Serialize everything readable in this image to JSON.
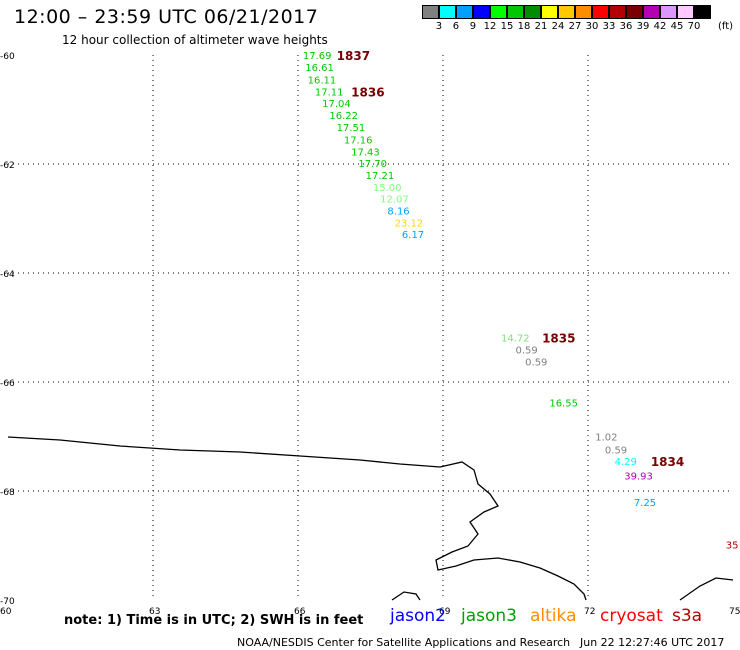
{
  "header": {
    "title": "12:00 – 23:59 UTC 06/21/2017",
    "subtitle": "12 hour collection of altimeter wave heights"
  },
  "legend": {
    "swatches": [
      {
        "color": "#808080",
        "label": "3"
      },
      {
        "color": "#00ffff",
        "label": "6"
      },
      {
        "color": "#00a0ff",
        "label": "9"
      },
      {
        "color": "#0000ff",
        "label": "12"
      },
      {
        "color": "#00ff00",
        "label": "15"
      },
      {
        "color": "#00c800",
        "label": "18"
      },
      {
        "color": "#008c00",
        "label": "21"
      },
      {
        "color": "#ffff00",
        "label": "24"
      },
      {
        "color": "#ffc800",
        "label": "27"
      },
      {
        "color": "#ff8c00",
        "label": "30"
      },
      {
        "color": "#ff0000",
        "label": "33"
      },
      {
        "color": "#b40000",
        "label": "36"
      },
      {
        "color": "#780000",
        "label": "39"
      },
      {
        "color": "#b400b4",
        "label": "42"
      },
      {
        "color": "#dc96ff",
        "label": "45"
      },
      {
        "color": "#ffc8ff",
        "label": "70"
      },
      {
        "color": "#000000",
        "label": ""
      }
    ],
    "unit": "(ft)"
  },
  "axes": {
    "lat_ticks": [
      "-60",
      "-62",
      "-64",
      "-66",
      "-68",
      "-70"
    ],
    "lon_ticks": [
      "60",
      "63",
      "66",
      "69",
      "72",
      "75"
    ]
  },
  "map": {
    "lat_range": [
      -70,
      -60
    ],
    "lon_range": [
      60,
      75
    ],
    "coastline": true,
    "grid": true
  },
  "observations": [
    {
      "lat": -60.0,
      "lon": 66.1,
      "value": "17.69",
      "color": "#00c800"
    },
    {
      "lat": -60.22,
      "lon": 66.15,
      "value": "16.61",
      "color": "#00c800"
    },
    {
      "lat": -60.45,
      "lon": 66.2,
      "value": "16.11",
      "color": "#00c800"
    },
    {
      "lat": -60.67,
      "lon": 66.35,
      "value": "17.11",
      "color": "#00c800"
    },
    {
      "lat": -60.88,
      "lon": 66.5,
      "value": "17.04",
      "color": "#00c800"
    },
    {
      "lat": -61.1,
      "lon": 66.65,
      "value": "16.22",
      "color": "#00c800"
    },
    {
      "lat": -61.32,
      "lon": 66.8,
      "value": "17.51",
      "color": "#00c800"
    },
    {
      "lat": -61.55,
      "lon": 66.95,
      "value": "17.16",
      "color": "#00c800"
    },
    {
      "lat": -61.77,
      "lon": 67.1,
      "value": "17.43",
      "color": "#00c800"
    },
    {
      "lat": -61.98,
      "lon": 67.25,
      "value": "17.70",
      "color": "#00c800"
    },
    {
      "lat": -62.2,
      "lon": 67.4,
      "value": "17.21",
      "color": "#00c800"
    },
    {
      "lat": -62.42,
      "lon": 67.55,
      "value": "15.00",
      "color": "#80ff80"
    },
    {
      "lat": -62.63,
      "lon": 67.7,
      "value": "12.07",
      "color": "#80ff80"
    },
    {
      "lat": -62.85,
      "lon": 67.85,
      "value": "8.16",
      "color": "#00a0ff"
    },
    {
      "lat": -63.07,
      "lon": 68.0,
      "value": "23.12",
      "color": "#ffd700"
    },
    {
      "lat": -63.28,
      "lon": 68.15,
      "value": "6.17",
      "color": "#00a0ff"
    },
    {
      "lat": -65.18,
      "lon": 70.2,
      "value": "14.72",
      "color": "#80e080"
    },
    {
      "lat": -65.4,
      "lon": 70.5,
      "value": "0.59",
      "color": "#808080"
    },
    {
      "lat": -65.62,
      "lon": 70.7,
      "value": "0.59",
      "color": "#808080"
    },
    {
      "lat": -66.38,
      "lon": 71.2,
      "value": "16.55",
      "color": "#00c800"
    },
    {
      "lat": -67.0,
      "lon": 72.15,
      "value": "1.02",
      "color": "#808080"
    },
    {
      "lat": -67.24,
      "lon": 72.35,
      "value": "0.59",
      "color": "#808080"
    },
    {
      "lat": -67.45,
      "lon": 72.55,
      "value": "4.29",
      "color": "#00ffff"
    },
    {
      "lat": -67.72,
      "lon": 72.75,
      "value": "39.93",
      "color": "#b400b4"
    },
    {
      "lat": -68.2,
      "lon": 72.95,
      "value": "7.25",
      "color": "#00a0ff"
    },
    {
      "lat": -68.98,
      "lon": 74.85,
      "value": "35",
      "color": "#b40000"
    }
  ],
  "cycle_labels": [
    {
      "lat": -60.0,
      "lon": 66.8,
      "text": "1837"
    },
    {
      "lat": -60.67,
      "lon": 67.1,
      "text": "1836"
    },
    {
      "lat": -65.18,
      "lon": 71.05,
      "text": "1835"
    },
    {
      "lat": -67.45,
      "lon": 73.3,
      "text": "1834"
    }
  ],
  "footer": {
    "note": "note: 1) Time is in UTC; 2) SWH is in feet",
    "satellites": [
      {
        "name": "jason2",
        "color": "#0000ff"
      },
      {
        "name": "jason3",
        "color": "#00a000"
      },
      {
        "name": "altika",
        "color": "#ff8c00"
      },
      {
        "name": "cryosat",
        "color": "#ff0000"
      },
      {
        "name": "s3a",
        "color": "#b40000"
      }
    ],
    "credit": "NOAA/NESDIS Center for Satellite Applications and Research",
    "timestamp": "Jun 22 12:27:46 UTC 2017"
  }
}
